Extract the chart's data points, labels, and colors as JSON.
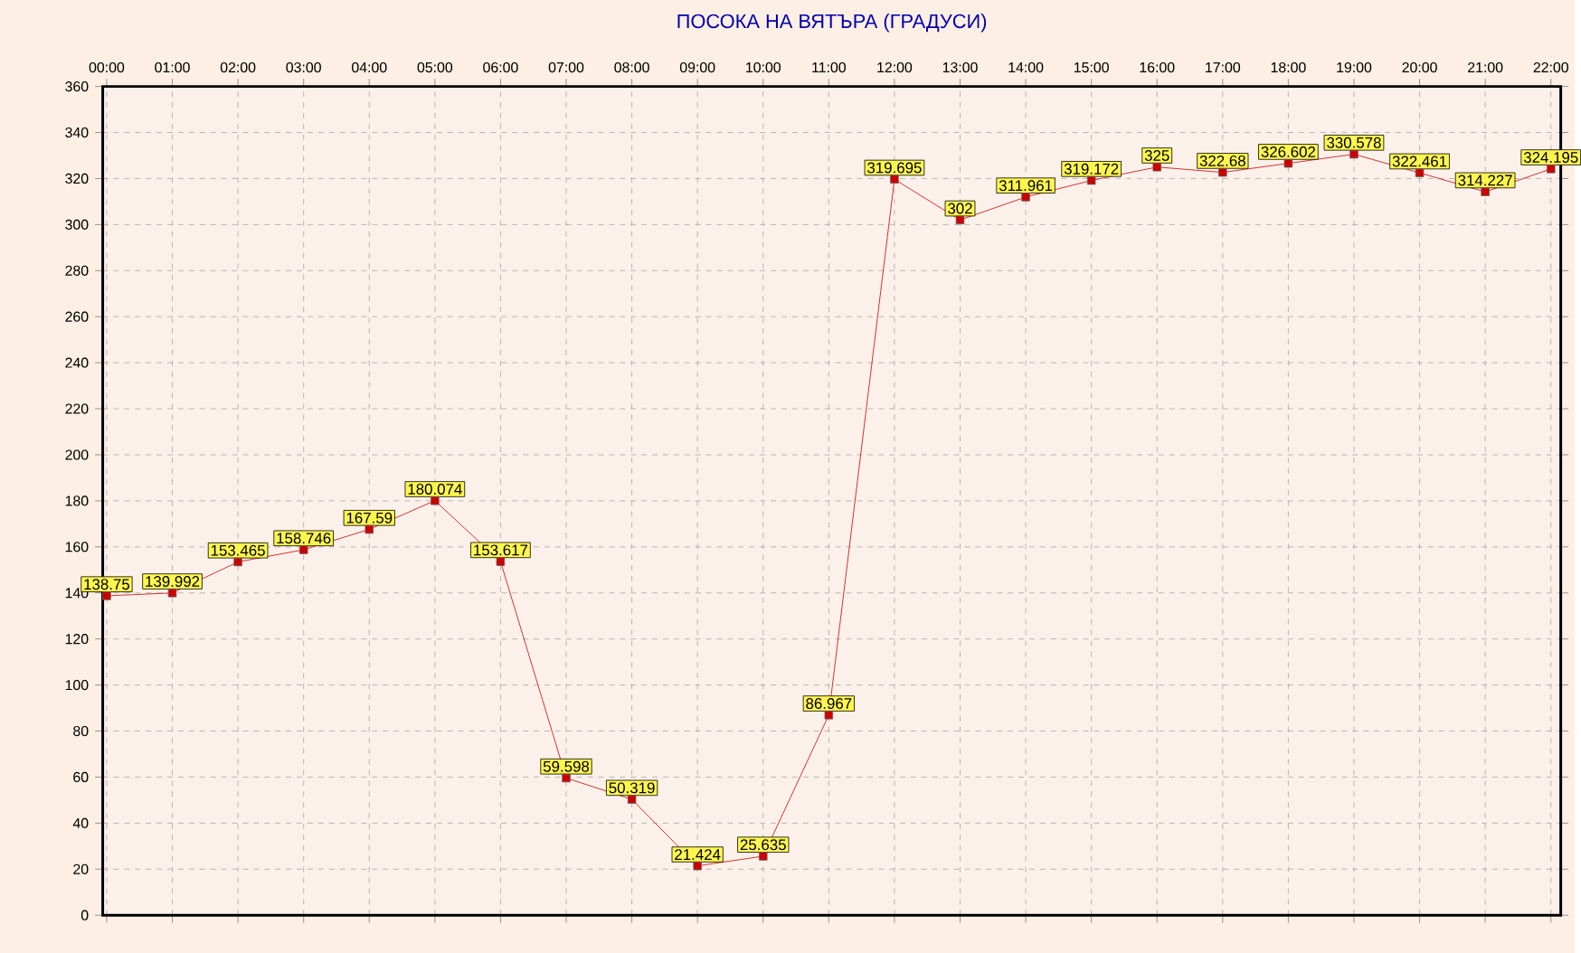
{
  "chart_data": {
    "type": "line",
    "title": "ПОСОКА НА ВЯТЪРА    (ГРАДУСИ)",
    "categories": [
      "00:00",
      "01:00",
      "02:00",
      "03:00",
      "04:00",
      "05:00",
      "06:00",
      "07:00",
      "08:00",
      "09:00",
      "10:00",
      "11:00",
      "12:00",
      "13:00",
      "14:00",
      "15:00",
      "16:00",
      "17:00",
      "18:00",
      "19:00",
      "20:00",
      "21:00",
      "22:00"
    ],
    "values": [
      138.75,
      139.992,
      153.465,
      158.746,
      167.59,
      180.074,
      153.617,
      59.598,
      50.319,
      21.424,
      25.635,
      86.967,
      319.695,
      302,
      311.961,
      319.172,
      325,
      322.68,
      326.602,
      330.578,
      322.461,
      314.227,
      324.195
    ],
    "color": "#cc0000",
    "ylim": [
      0,
      360
    ],
    "yticks": [
      0,
      20,
      40,
      60,
      80,
      100,
      120,
      140,
      160,
      180,
      200,
      220,
      240,
      260,
      280,
      300,
      320,
      340,
      360
    ],
    "grid": true,
    "marker": "square",
    "line_style": "solid",
    "data_labels": true
  }
}
